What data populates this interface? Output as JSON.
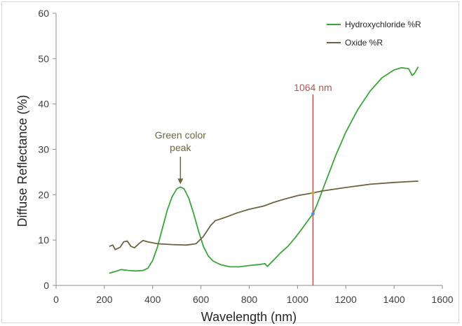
{
  "chart_data": {
    "type": "line",
    "xlabel": "Wavelength (nm)",
    "ylabel": "Diffuse Reflectance (%)",
    "xlim": [
      0,
      1600
    ],
    "ylim": [
      0,
      60
    ],
    "xticks": [
      0,
      200,
      400,
      600,
      800,
      1000,
      1200,
      1400,
      1600
    ],
    "yticks": [
      0,
      10,
      20,
      30,
      40,
      50,
      60
    ],
    "legend_position": "top-right",
    "grid": false,
    "series": [
      {
        "name": "Hydroxychloride %R",
        "color": "#3aa63a",
        "points": [
          [
            220,
            2.7
          ],
          [
            240,
            3.0
          ],
          [
            270,
            3.5
          ],
          [
            300,
            3.3
          ],
          [
            330,
            3.2
          ],
          [
            360,
            3.3
          ],
          [
            380,
            3.8
          ],
          [
            400,
            5.5
          ],
          [
            420,
            8.5
          ],
          [
            440,
            12.5
          ],
          [
            460,
            16.5
          ],
          [
            480,
            19.5
          ],
          [
            500,
            21.3
          ],
          [
            515,
            21.7
          ],
          [
            530,
            21.3
          ],
          [
            550,
            19.2
          ],
          [
            570,
            15.8
          ],
          [
            590,
            12.0
          ],
          [
            610,
            8.6
          ],
          [
            630,
            6.5
          ],
          [
            650,
            5.4
          ],
          [
            680,
            4.6
          ],
          [
            720,
            4.1
          ],
          [
            760,
            4.1
          ],
          [
            800,
            4.4
          ],
          [
            840,
            4.6
          ],
          [
            865,
            4.8
          ],
          [
            875,
            4.2
          ],
          [
            900,
            5.5
          ],
          [
            930,
            7.2
          ],
          [
            960,
            8.6
          ],
          [
            990,
            10.5
          ],
          [
            1020,
            12.6
          ],
          [
            1050,
            14.8
          ],
          [
            1064,
            15.8
          ],
          [
            1080,
            17.7
          ],
          [
            1100,
            20.5
          ],
          [
            1130,
            24.7
          ],
          [
            1160,
            28.9
          ],
          [
            1200,
            33.8
          ],
          [
            1250,
            38.8
          ],
          [
            1300,
            42.8
          ],
          [
            1350,
            45.8
          ],
          [
            1400,
            47.5
          ],
          [
            1430,
            48.0
          ],
          [
            1460,
            47.8
          ],
          [
            1475,
            46.3
          ],
          [
            1485,
            46.8
          ],
          [
            1500,
            48.2
          ]
        ]
      },
      {
        "name": "Oxide %R",
        "color": "#6b6340",
        "points": [
          [
            220,
            8.6
          ],
          [
            235,
            8.9
          ],
          [
            245,
            7.9
          ],
          [
            265,
            8.4
          ],
          [
            280,
            9.6
          ],
          [
            295,
            9.8
          ],
          [
            310,
            8.6
          ],
          [
            325,
            8.3
          ],
          [
            345,
            9.3
          ],
          [
            360,
            9.9
          ],
          [
            380,
            9.6
          ],
          [
            420,
            9.2
          ],
          [
            480,
            9.0
          ],
          [
            540,
            8.9
          ],
          [
            580,
            9.2
          ],
          [
            610,
            10.8
          ],
          [
            640,
            13.2
          ],
          [
            660,
            14.3
          ],
          [
            700,
            15.0
          ],
          [
            750,
            16.0
          ],
          [
            800,
            16.8
          ],
          [
            860,
            17.5
          ],
          [
            900,
            18.3
          ],
          [
            950,
            19.1
          ],
          [
            1000,
            19.8
          ],
          [
            1064,
            20.4
          ],
          [
            1100,
            20.8
          ],
          [
            1200,
            21.6
          ],
          [
            1300,
            22.3
          ],
          [
            1400,
            22.7
          ],
          [
            1500,
            23.0
          ]
        ]
      }
    ],
    "annotations": [
      {
        "text": "1064 nm",
        "x": 1064,
        "color": "#b85450",
        "type": "vertical-line"
      },
      {
        "text_lines": [
          "Green color",
          "peak"
        ],
        "x": 515,
        "y": 21.7,
        "color": "#6b6a3a",
        "type": "arrow"
      }
    ]
  }
}
